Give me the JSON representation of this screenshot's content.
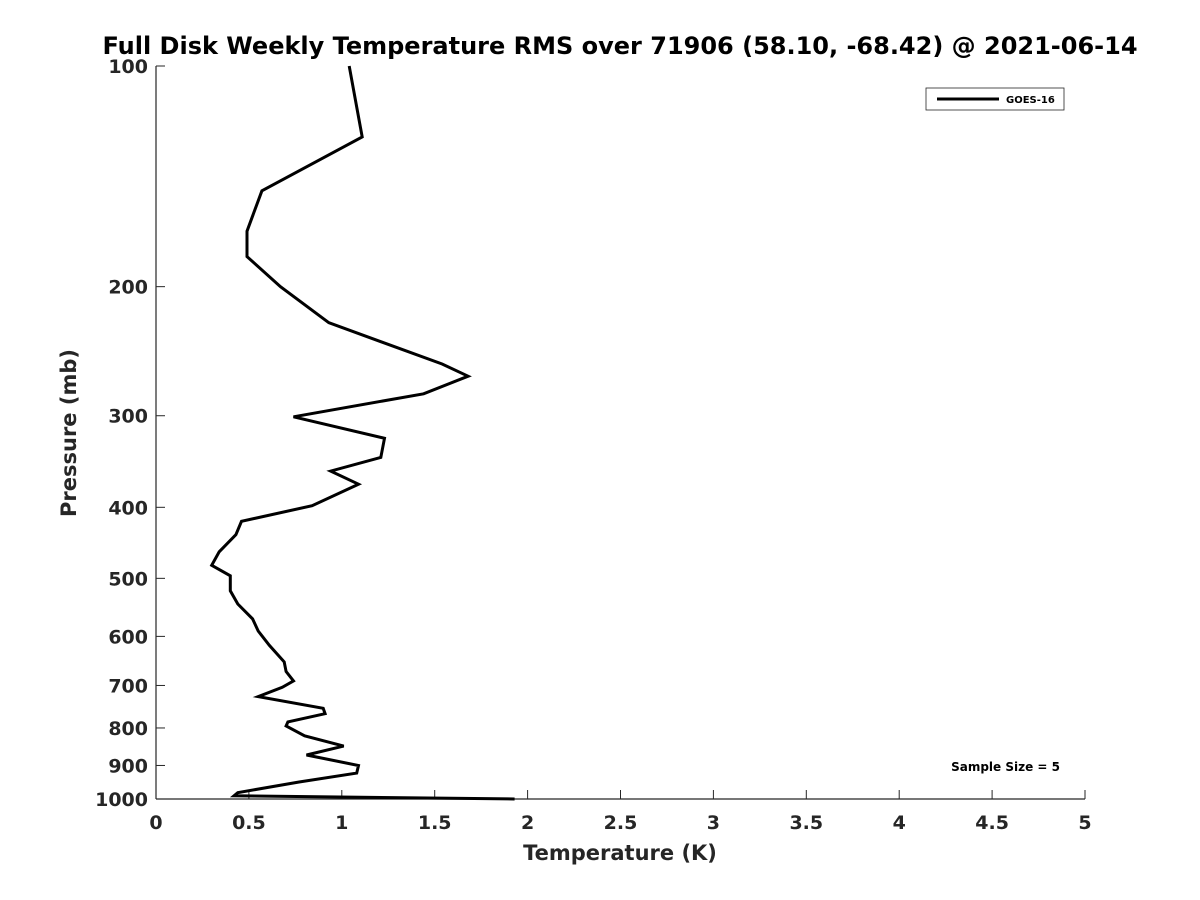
{
  "chart_data": {
    "type": "line",
    "title": "Full Disk Weekly Temperature RMS over 71906 (58.10, -68.42) @ 2021-06-14",
    "xlabel": "Temperature (K)",
    "ylabel": "Pressure (mb)",
    "xlim": [
      0,
      5
    ],
    "ylim": [
      1000,
      100
    ],
    "y_scale": "log",
    "y_reversed": true,
    "grid": false,
    "x_ticks": [
      0,
      0.5,
      1,
      1.5,
      2,
      2.5,
      3,
      3.5,
      4,
      4.5,
      5
    ],
    "x_tick_labels": [
      "0",
      "0.5",
      "1",
      "1.5",
      "2",
      "2.5",
      "3",
      "3.5",
      "4",
      "4.5",
      "5"
    ],
    "y_ticks": [
      100,
      200,
      300,
      400,
      500,
      600,
      700,
      800,
      900,
      1000
    ],
    "y_tick_labels": [
      "100",
      "200",
      "300",
      "400",
      "500",
      "600",
      "700",
      "800",
      "900",
      "1000"
    ],
    "legend": {
      "position": "top-right",
      "entries": [
        "GOES-16"
      ]
    },
    "annotation": "Sample Size = 5",
    "series": [
      {
        "name": "GOES-16",
        "color": "#000000",
        "x": [
          1.04,
          1.11,
          0.57,
          0.49,
          0.49,
          0.67,
          0.93,
          1.54,
          1.68,
          1.44,
          0.74,
          1.23,
          1.21,
          0.94,
          1.09,
          0.84,
          0.46,
          0.43,
          0.34,
          0.3,
          0.4,
          0.4,
          0.44,
          0.52,
          0.55,
          0.61,
          0.69,
          0.7,
          0.74,
          0.68,
          0.55,
          0.9,
          0.91,
          0.71,
          0.7,
          0.8,
          1.01,
          0.81,
          1.09,
          1.08,
          0.77,
          0.44,
          0.42,
          1.93
        ],
        "y": [
          100,
          125,
          148,
          168,
          182,
          200,
          224,
          255,
          265,
          280,
          301,
          322,
          342,
          357,
          372,
          398,
          418,
          436,
          460,
          480,
          496,
          520,
          542,
          568,
          590,
          617,
          650,
          670,
          690,
          704,
          725,
          752,
          765,
          785,
          795,
          820,
          847,
          871,
          900,
          922,
          948,
          980,
          990,
          1000
        ]
      }
    ]
  }
}
